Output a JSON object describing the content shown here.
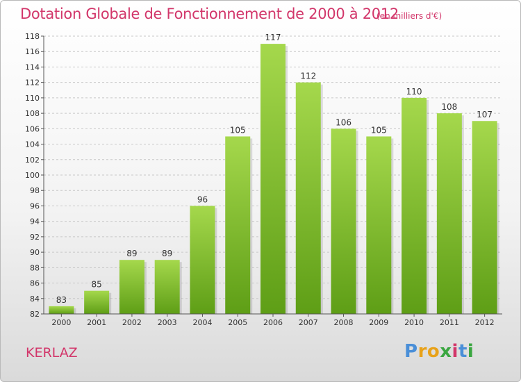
{
  "title": "Dotation Globale de Fonctionnement de 2000 à 2012",
  "subtitle": "(en milliers d'€)",
  "commune": "KERLAZ",
  "logo": {
    "letters": [
      "P",
      "r",
      "o",
      "x",
      "i",
      "t",
      "i"
    ],
    "colors": [
      "#4a8fd8",
      "#e8a21a",
      "#e8a21a",
      "#3aa640",
      "#d2366a",
      "#4a8fd8",
      "#3aa640"
    ]
  },
  "colors": {
    "title": "#d2366a",
    "bar_light": "#a5d84c",
    "bar_dark": "#5e9e16",
    "grid": "#c8c8c8",
    "axis_text": "#333333"
  },
  "chart_data": {
    "type": "bar",
    "categories": [
      "2000",
      "2001",
      "2002",
      "2003",
      "2004",
      "2005",
      "2006",
      "2007",
      "2008",
      "2009",
      "2010",
      "2011",
      "2012"
    ],
    "values": [
      83,
      85,
      89,
      89,
      96,
      105,
      117,
      112,
      106,
      105,
      110,
      108,
      107
    ],
    "ylim": [
      82,
      118
    ],
    "yticks": [
      82,
      84,
      86,
      88,
      90,
      92,
      94,
      96,
      98,
      100,
      102,
      104,
      106,
      108,
      110,
      112,
      114,
      116,
      118
    ],
    "grid": "horizontal-dashed",
    "title": "Dotation Globale de Fonctionnement de 2000 à 2012",
    "xlabel": "",
    "ylabel": ""
  }
}
